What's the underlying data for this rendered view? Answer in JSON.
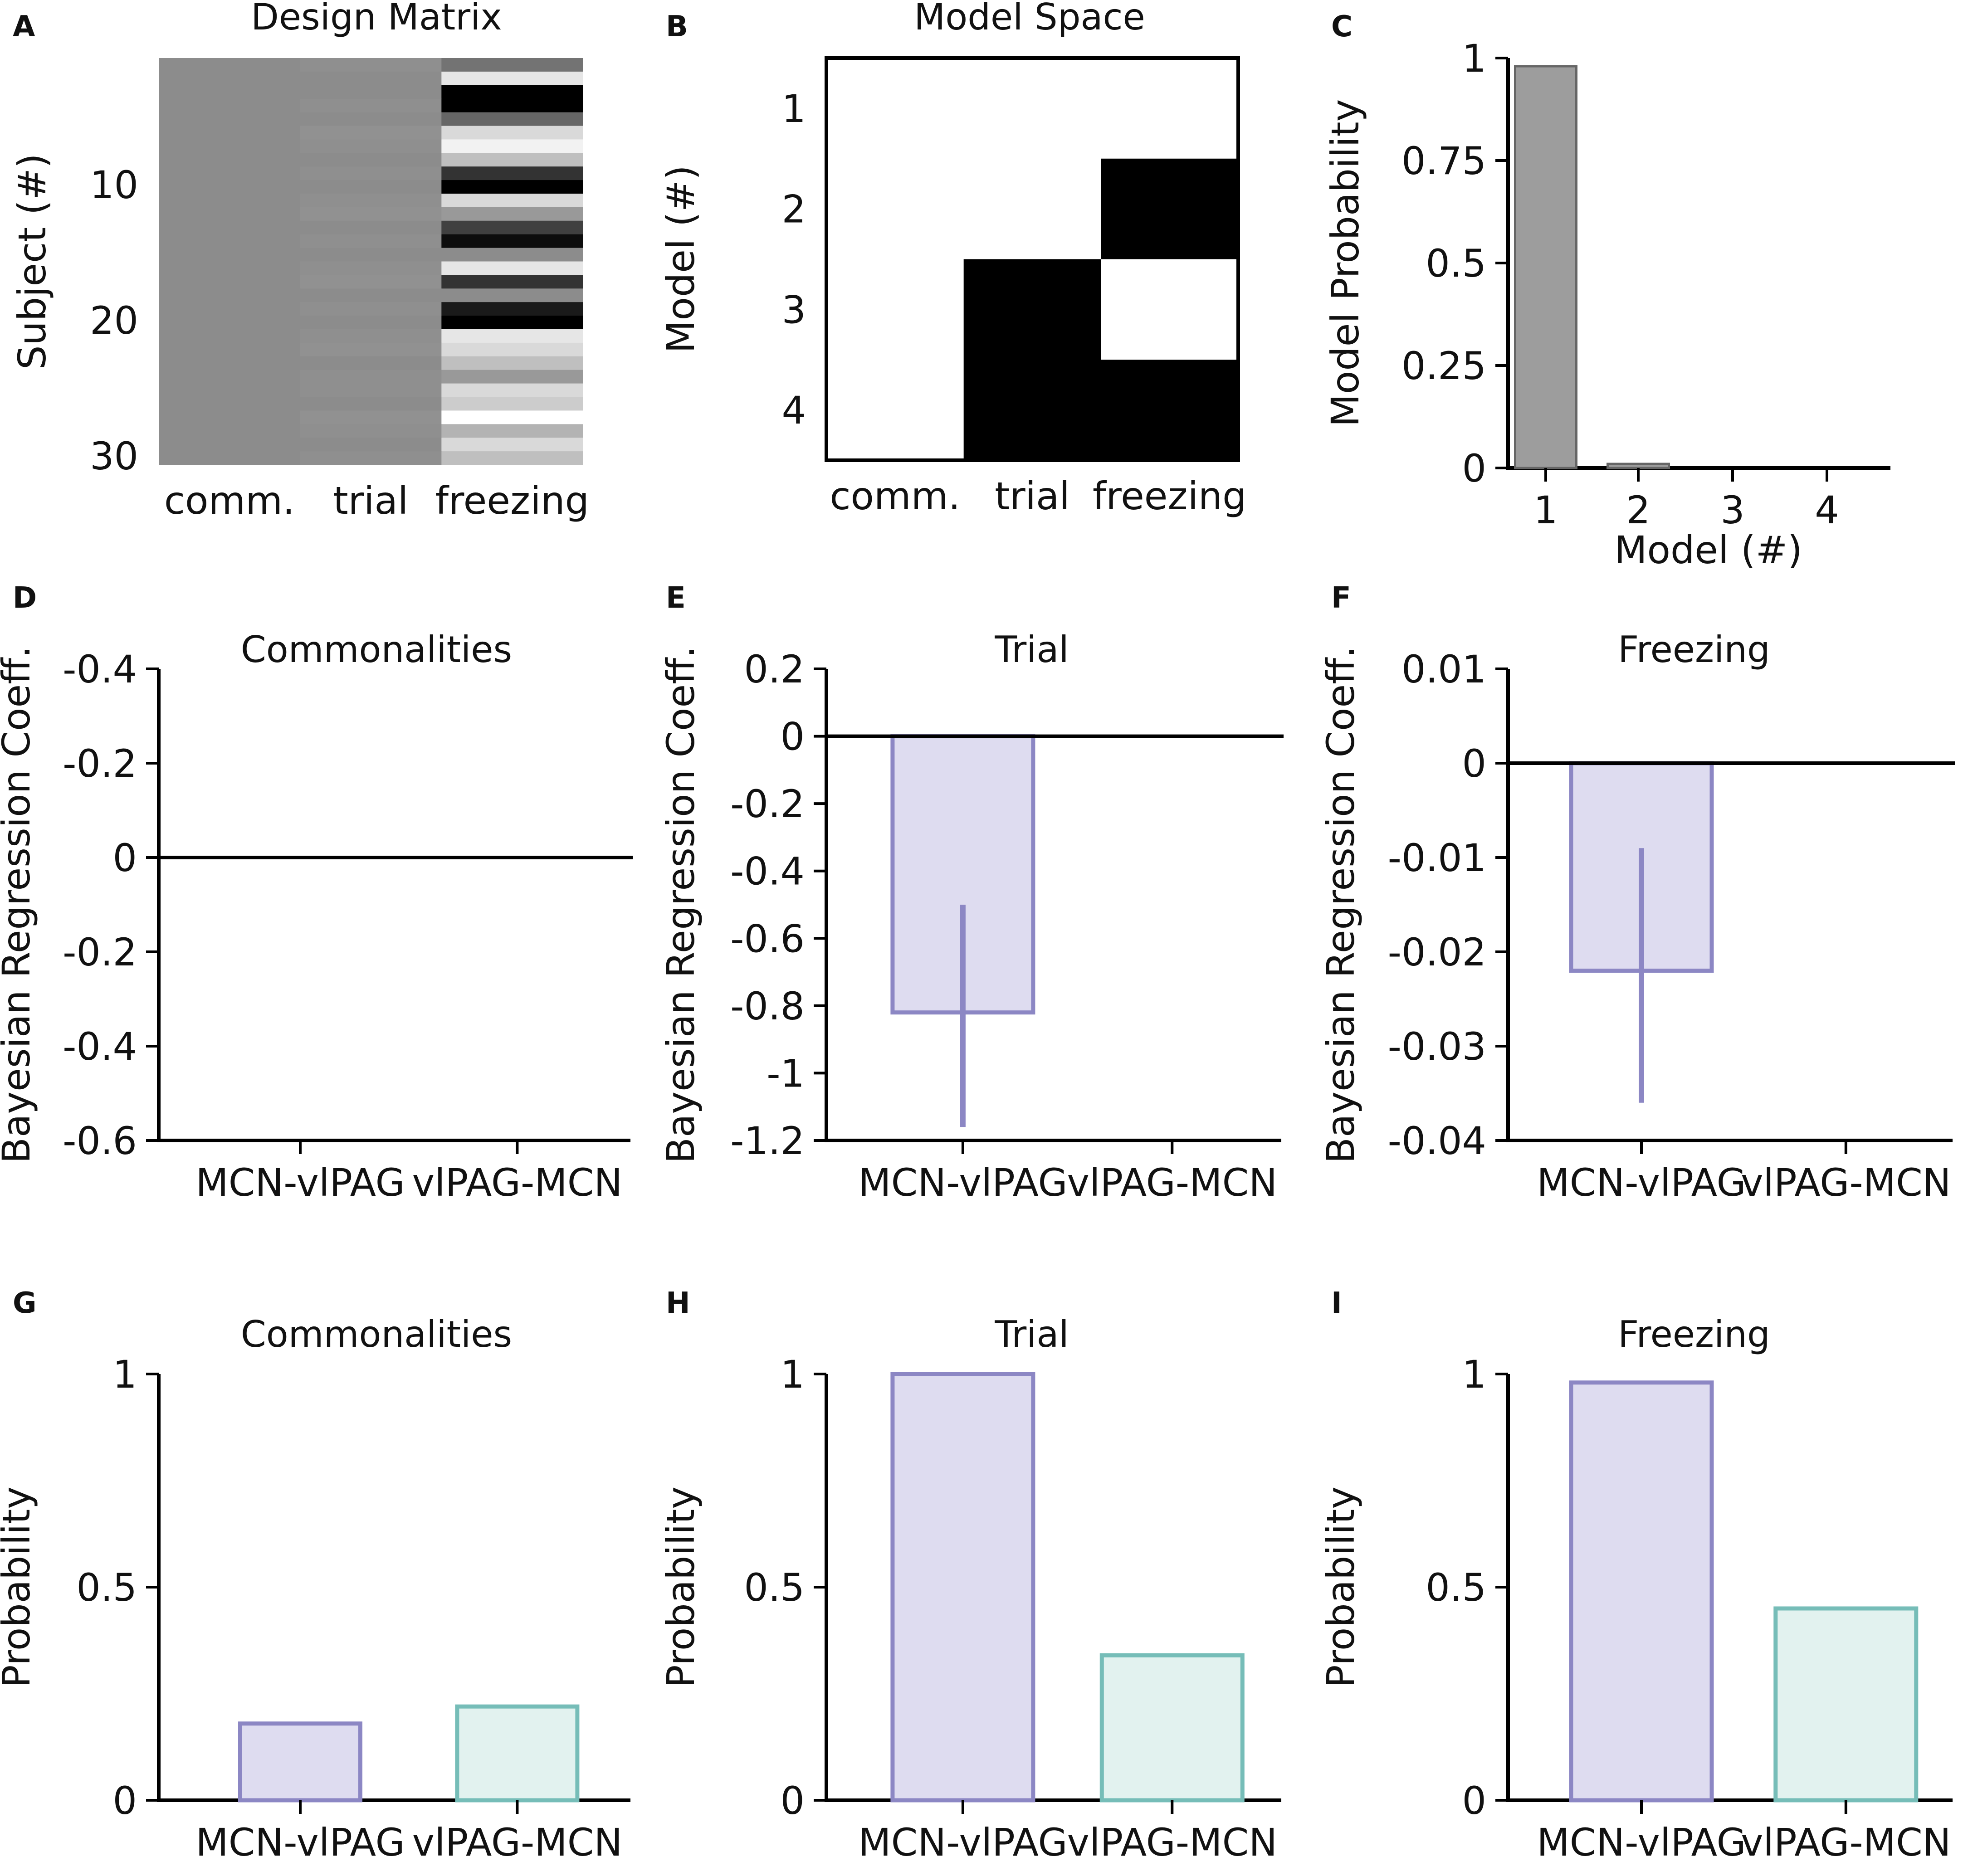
{
  "figure": {
    "colors": {
      "purple_fill": "#dedcf0",
      "purple_edge": "#8c87c4",
      "teal_fill": "#e2f2ef",
      "teal_edge": "#76bdb8",
      "gray_fill": "#9d9d9d",
      "gray_edge": "#666666",
      "black": "#000000"
    }
  },
  "chart_data": [
    {
      "panel": "A",
      "type": "heatmap",
      "title": "Design Matrix",
      "ylabel": "Subject (#)",
      "columns": [
        "comm.",
        "trial",
        "freezing"
      ],
      "yticks": [
        10,
        20,
        30
      ],
      "n_rows": 30,
      "cells": [
        [
          0.55,
          0.56,
          0.45
        ],
        [
          0.55,
          0.55,
          0.9
        ],
        [
          0.55,
          0.55,
          0.0
        ],
        [
          0.55,
          0.56,
          0.0
        ],
        [
          0.55,
          0.55,
          0.4
        ],
        [
          0.55,
          0.57,
          0.85
        ],
        [
          0.55,
          0.56,
          0.95
        ],
        [
          0.55,
          0.55,
          0.75
        ],
        [
          0.55,
          0.56,
          0.2
        ],
        [
          0.55,
          0.55,
          0.0
        ],
        [
          0.55,
          0.56,
          0.85
        ],
        [
          0.55,
          0.57,
          0.6
        ],
        [
          0.55,
          0.55,
          0.25
        ],
        [
          0.55,
          0.56,
          0.05
        ],
        [
          0.55,
          0.55,
          0.55
        ],
        [
          0.55,
          0.56,
          0.9
        ],
        [
          0.55,
          0.57,
          0.2
        ],
        [
          0.55,
          0.55,
          0.55
        ],
        [
          0.55,
          0.56,
          0.1
        ],
        [
          0.55,
          0.55,
          0.0
        ],
        [
          0.55,
          0.56,
          0.9
        ],
        [
          0.55,
          0.57,
          0.85
        ],
        [
          0.55,
          0.55,
          0.75
        ],
        [
          0.55,
          0.56,
          0.6
        ],
        [
          0.55,
          0.56,
          0.85
        ],
        [
          0.55,
          0.55,
          0.8
        ],
        [
          0.55,
          0.57,
          1.0
        ],
        [
          0.55,
          0.56,
          0.7
        ],
        [
          0.55,
          0.55,
          0.85
        ],
        [
          0.55,
          0.56,
          0.75
        ]
      ]
    },
    {
      "panel": "B",
      "type": "heatmap",
      "title": "Model Space",
      "ylabel": "Model (#)",
      "columns": [
        "comm.",
        "trial",
        "freezing"
      ],
      "yticks": [
        1,
        2,
        3,
        4
      ],
      "cells": [
        [
          1,
          1,
          1
        ],
        [
          1,
          1,
          0
        ],
        [
          1,
          0,
          1
        ],
        [
          1,
          0,
          0
        ]
      ]
    },
    {
      "panel": "C",
      "type": "bar",
      "title": "",
      "xlabel": "Model (#)",
      "ylabel": "Model Probability",
      "categories": [
        "1",
        "2",
        "3",
        "4"
      ],
      "values": [
        0.98,
        0.01,
        0.0,
        0.0
      ],
      "ylim": [
        0,
        1
      ],
      "yticks": [
        0,
        0.25,
        0.5,
        0.75,
        1
      ],
      "ytick_labels": [
        "0",
        "0.25",
        "0.5",
        "0.75",
        "1"
      ]
    },
    {
      "panel": "D",
      "type": "bar",
      "title": "Commonalities",
      "ylabel": "Bayesian Regression Coeff.",
      "categories": [
        "MCN-vlPAG",
        "vlPAG-MCN"
      ],
      "values": [
        0,
        0
      ],
      "ylim": [
        -0.6,
        0.4
      ],
      "inverted_labels": true,
      "yticks": [
        0.4,
        0.2,
        0,
        -0.2,
        -0.4,
        -0.6
      ],
      "ytick_labels": [
        "-0.4",
        "-0.2",
        "0",
        "-0.2",
        "-0.4",
        "-0.6"
      ]
    },
    {
      "panel": "E",
      "type": "bar",
      "title": "Trial",
      "ylabel": "Bayesian Regression Coeff.",
      "categories": [
        "MCN-vlPAG",
        "vlPAG-MCN"
      ],
      "values": [
        -0.82,
        0
      ],
      "errors": [
        [
          -1.16,
          -0.5
        ],
        null
      ],
      "ylim": [
        -1.2,
        0.2
      ],
      "yticks": [
        0.2,
        0,
        -0.2,
        -0.4,
        -0.6,
        -0.8,
        -1,
        -1.2
      ],
      "ytick_labels": [
        "0.2",
        "0",
        "-0.2",
        "-0.4",
        "-0.6",
        "-0.8",
        "-1",
        "-1.2"
      ]
    },
    {
      "panel": "F",
      "type": "bar",
      "title": "Freezing",
      "ylabel": "Bayesian Regression Coeff.",
      "categories": [
        "MCN-vlPAG",
        "vlPAG-MCN"
      ],
      "values": [
        -0.022,
        0
      ],
      "errors": [
        [
          -0.036,
          -0.009
        ],
        null
      ],
      "ylim": [
        -0.04,
        0.01
      ],
      "yticks": [
        0.01,
        0,
        -0.01,
        -0.02,
        -0.03,
        -0.04
      ],
      "ytick_labels": [
        "0.01",
        "0",
        "-0.01",
        "-0.02",
        "-0.03",
        "-0.04"
      ]
    },
    {
      "panel": "G",
      "type": "bar",
      "title": "Commonalities",
      "ylabel": "Probability",
      "categories": [
        "MCN-vlPAG",
        "vlPAG-MCN"
      ],
      "values": [
        0.18,
        0.22
      ],
      "ylim": [
        0,
        1
      ],
      "yticks": [
        0,
        0.5,
        1
      ],
      "ytick_labels": [
        "0",
        "0.5",
        "1"
      ]
    },
    {
      "panel": "H",
      "type": "bar",
      "title": "Trial",
      "ylabel": "Probability",
      "categories": [
        "MCN-vlPAG",
        "vlPAG-MCN"
      ],
      "values": [
        1.0,
        0.34
      ],
      "ylim": [
        0,
        1
      ],
      "yticks": [
        0,
        0.5,
        1
      ],
      "ytick_labels": [
        "0",
        "0.5",
        "1"
      ]
    },
    {
      "panel": "I",
      "type": "bar",
      "title": "Freezing",
      "ylabel": "Probability",
      "categories": [
        "MCN-vlPAG",
        "vlPAG-MCN"
      ],
      "values": [
        0.98,
        0.45
      ],
      "ylim": [
        0,
        1
      ],
      "yticks": [
        0,
        0.5,
        1
      ],
      "ytick_labels": [
        "0",
        "0.5",
        "1"
      ]
    }
  ]
}
